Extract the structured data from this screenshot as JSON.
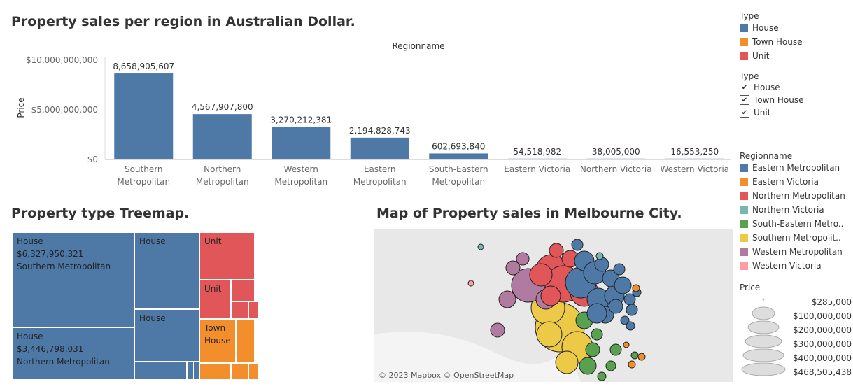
{
  "bar_chart": {
    "title": "Property sales per region in Australian Dollar.",
    "header": "Regionname",
    "ylabel": "Price",
    "yticks": [
      "$10,000,000,000",
      "$5,000,000,000",
      "$0"
    ],
    "data_labels": [
      "8,658,905,607",
      "4,567,907,800",
      "3,270,212,381",
      "2,194,828,743",
      "602,693,840",
      "54,518,982",
      "38,005,000",
      "16,553,250"
    ],
    "category_labels": [
      [
        "Southern",
        "Metropolitan"
      ],
      [
        "Northern",
        "Metropolitan"
      ],
      [
        "Western",
        "Metropolitan"
      ],
      [
        "Eastern",
        "Metropolitan"
      ],
      [
        "South-Eastern",
        "Metropolitan"
      ],
      [
        "Eastern Victoria",
        ""
      ],
      [
        "Northern Victoria",
        ""
      ],
      [
        "Western Victoria",
        ""
      ]
    ]
  },
  "chart_data": {
    "type": "bar",
    "title": "Property sales per region in Australian Dollar.",
    "xlabel": "Regionname",
    "ylabel": "Price",
    "categories": [
      "Southern Metropolitan",
      "Northern Metropolitan",
      "Western Metropolitan",
      "Eastern Metropolitan",
      "South-Eastern Metropolitan",
      "Eastern Victoria",
      "Northern Victoria",
      "Western Victoria"
    ],
    "values": [
      8658905607,
      4567907800,
      3270212381,
      2194828743,
      602693840,
      54518982,
      38005000,
      16553250
    ],
    "ylim": [
      0,
      10000000000
    ],
    "color": "#4e79a7"
  },
  "treemap": {
    "title": "Property type Treemap.",
    "cells": [
      {
        "lines": [
          "House",
          "$6,327,950,321",
          "Southern Metropolitan"
        ],
        "color": "#4e79a7"
      },
      {
        "lines": [
          "House",
          "$3,446,798,031",
          "Northern Metropolitan"
        ],
        "color": "#4e79a7"
      },
      {
        "lines": [
          "House"
        ],
        "color": "#4e79a7"
      },
      {
        "lines": [
          "House"
        ],
        "color": "#4e79a7"
      },
      {
        "lines": [
          "Unit"
        ],
        "color": "#e15759"
      },
      {
        "lines": [
          "Unit"
        ],
        "color": "#e15759"
      },
      {
        "lines": [
          "Town",
          "House"
        ],
        "color": "#f28e2b"
      }
    ]
  },
  "map": {
    "title": "Map of Property sales in Melbourne City.",
    "attribution": "© 2023 Mapbox © OpenStreetMap"
  },
  "legend_type": {
    "title": "Type",
    "items": [
      {
        "label": "House",
        "color": "#4e79a7"
      },
      {
        "label": "Town House",
        "color": "#f28e2b"
      },
      {
        "label": "Unit",
        "color": "#e15759"
      }
    ]
  },
  "filter_type": {
    "title": "Type",
    "items": [
      {
        "label": "House"
      },
      {
        "label": "Town House"
      },
      {
        "label": "Unit"
      }
    ]
  },
  "legend_region": {
    "title": "Regionname",
    "items": [
      {
        "label": "Eastern Metropolitan",
        "color": "#4e79a7"
      },
      {
        "label": "Eastern Victoria",
        "color": "#f28e2b"
      },
      {
        "label": "Northern Metropolitan",
        "color": "#e15759"
      },
      {
        "label": "Northern Victoria",
        "color": "#76b7b2"
      },
      {
        "label": "South-Eastern Metro..",
        "color": "#59a14f"
      },
      {
        "label": "Southern Metropolit..",
        "color": "#edc948"
      },
      {
        "label": "Western Metropolitan",
        "color": "#b07aa1"
      },
      {
        "label": "Western Victoria",
        "color": "#ff9da7"
      }
    ]
  },
  "legend_price": {
    "title": "Price",
    "items": [
      "$285,000",
      "$100,000,000",
      "$200,000,000",
      "$300,000,000",
      "$400,000,000",
      "$468,505,438"
    ]
  }
}
